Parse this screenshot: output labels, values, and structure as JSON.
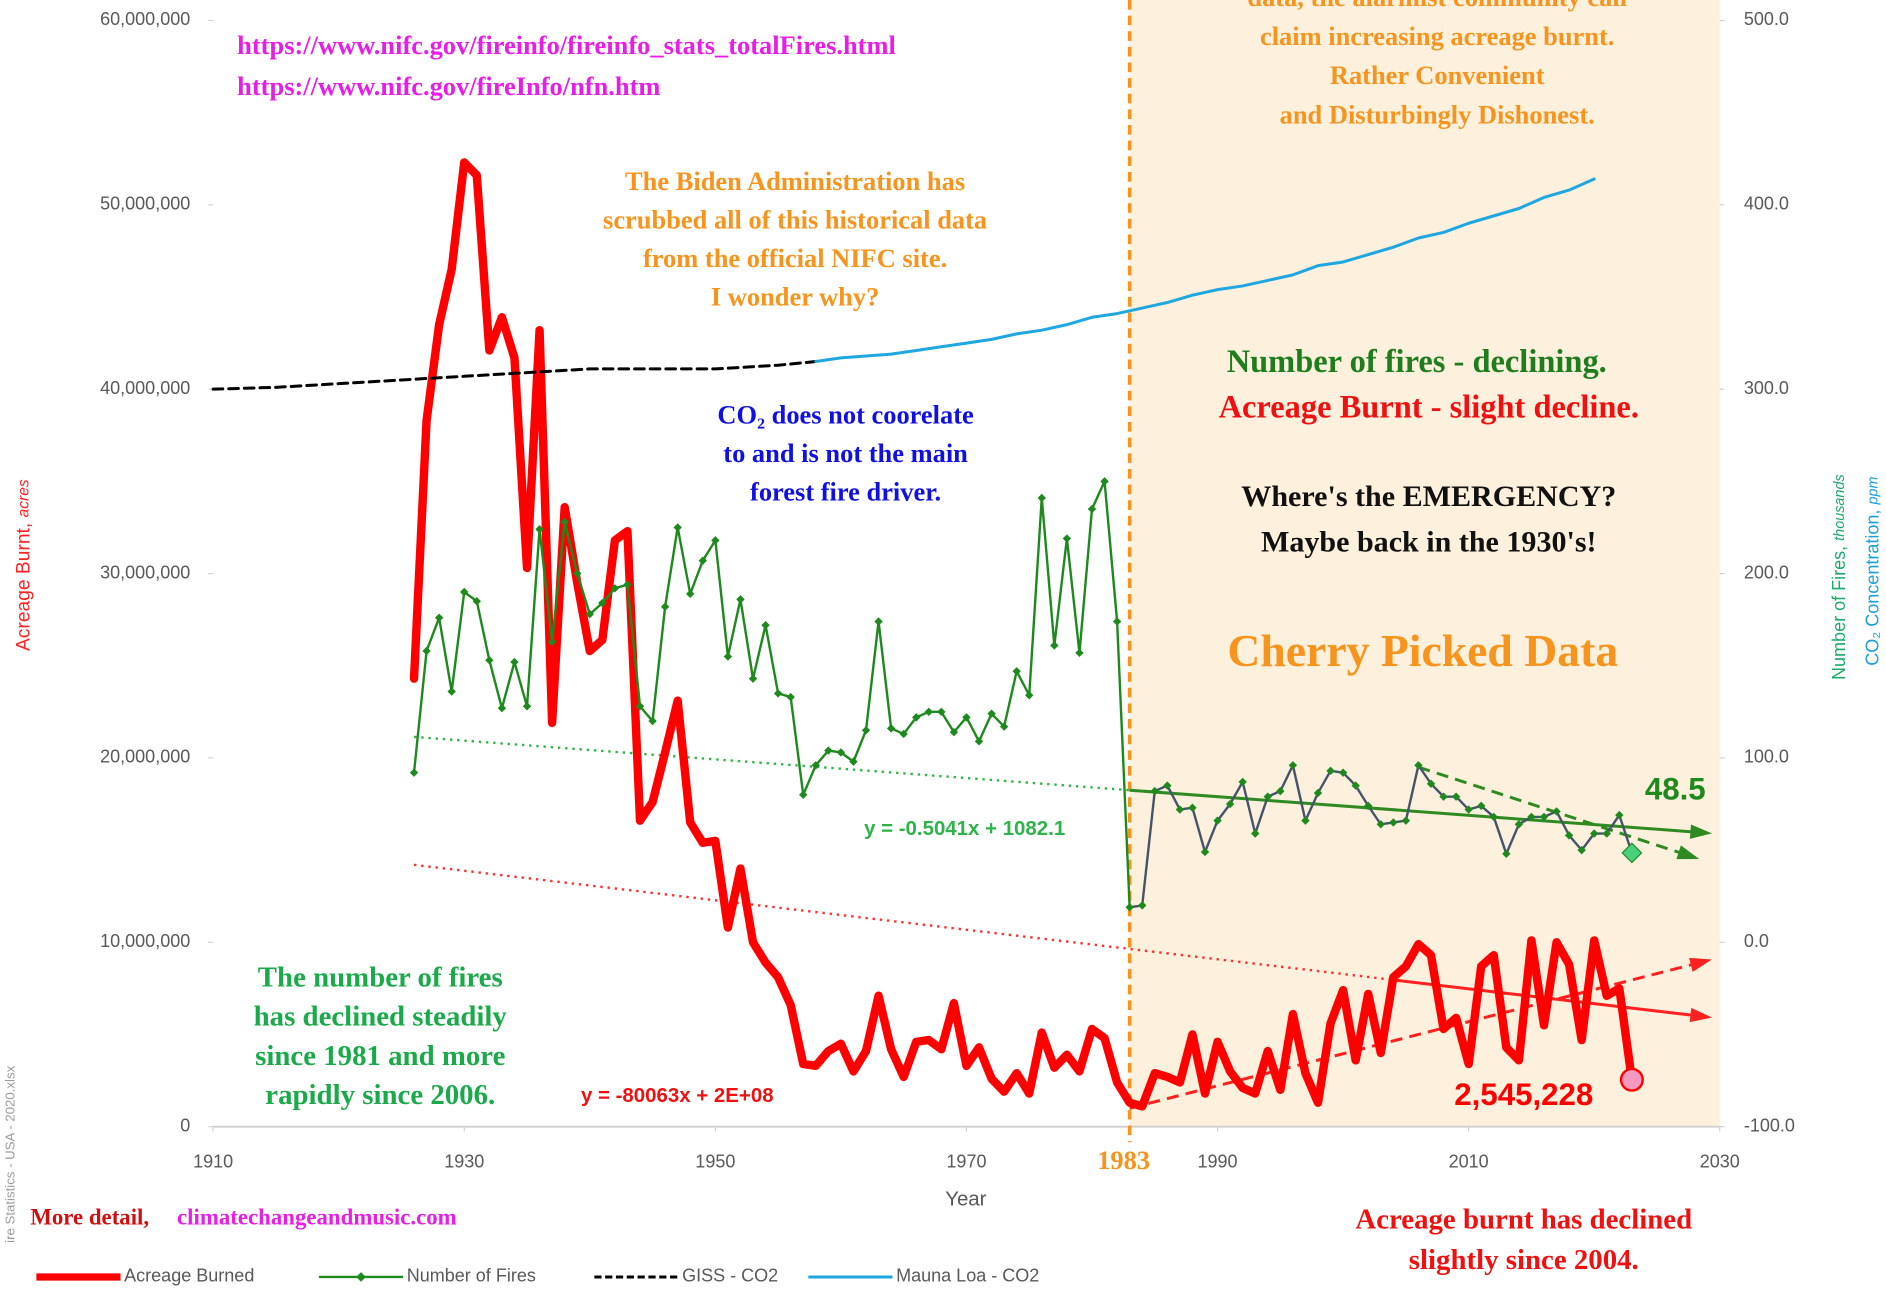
{
  "chart_data": {
    "type": "line",
    "x_label": "Year",
    "y_label": {
      "text": "Acreage Burnt,",
      "unit": "acres",
      "color": "#ff2020"
    },
    "y2_labels": [
      {
        "text": "Number of Fires,",
        "unit": "thousands",
        "color": "#1aab6b"
      },
      {
        "text": "CO₂ Concentration,",
        "unit": "ppm",
        "color": "#19a0d8"
      }
    ],
    "xlim": [
      1910,
      2030
    ],
    "xticks": [
      1910,
      1930,
      1950,
      1970,
      1990,
      2010,
      2030
    ],
    "ylim": [
      0,
      60000000
    ],
    "yticks": [
      0,
      {
        "value": 10000000,
        "label": "10,000,000"
      },
      {
        "value": 20000000,
        "label": "20,000,000"
      },
      {
        "value": 30000000,
        "label": "30,000,000"
      },
      {
        "value": 40000000,
        "label": "40,000,000"
      },
      {
        "value": 50000000,
        "label": "50,000,000"
      },
      {
        "value": 60000000,
        "label": "60,000,000"
      }
    ],
    "y2lim": [
      -100,
      500
    ],
    "y2ticks": [
      {
        "value": -100,
        "label": "-100.0"
      },
      {
        "value": 0,
        "label": "0.0"
      },
      {
        "value": 100,
        "label": "100.0"
      },
      {
        "value": 200,
        "label": "200.0"
      },
      {
        "value": 300,
        "label": "300.0"
      },
      {
        "value": 400,
        "label": "400.0"
      },
      {
        "value": 500,
        "label": "500.0"
      }
    ],
    "grid": false,
    "legend": "bottom-left",
    "cutoff": 1983,
    "cutoff_color": "#f7941d",
    "shade_color": "#fdf0dc",
    "series": [
      {
        "name": "Acreage Burned",
        "color": "#ff0000",
        "axis": "y",
        "width": 7,
        "last_marker_color": "#f49ac1",
        "x": [
          1926,
          1927,
          1928,
          1929,
          1930,
          1931,
          1932,
          1933,
          1934,
          1935,
          1936,
          1937,
          1938,
          1939,
          1940,
          1941,
          1942,
          1943,
          1944,
          1945,
          1946,
          1947,
          1948,
          1949,
          1950,
          1951,
          1952,
          1953,
          1954,
          1955,
          1956,
          1957,
          1958,
          1959,
          1960,
          1961,
          1962,
          1963,
          1964,
          1965,
          1966,
          1967,
          1968,
          1969,
          1970,
          1971,
          1972,
          1973,
          1974,
          1975,
          1976,
          1977,
          1978,
          1979,
          1980,
          1981,
          1982,
          1983,
          1984,
          1985,
          1986,
          1987,
          1988,
          1989,
          1990,
          1991,
          1992,
          1993,
          1994,
          1995,
          1996,
          1997,
          1998,
          1999,
          2000,
          2001,
          2002,
          2003,
          2004,
          2005,
          2006,
          2007,
          2008,
          2009,
          2010,
          2011,
          2012,
          2013,
          2014,
          2015,
          2016,
          2017,
          2018,
          2019,
          2020,
          2021,
          2022,
          2023
        ],
        "values": [
          24300000,
          38300000,
          43500000,
          46500000,
          52300000,
          51600000,
          42100000,
          43900000,
          41700000,
          30300000,
          43200000,
          21900000,
          33600000,
          29500000,
          25800000,
          26400000,
          31800000,
          32300000,
          16600000,
          17600000,
          20300000,
          23100000,
          16500000,
          15400000,
          15500000,
          10800000,
          14000000,
          10000000,
          8900000,
          8100000,
          6600000,
          3400000,
          3300000,
          4100000,
          4500000,
          3000000,
          4100000,
          7100000,
          4200000,
          2700000,
          4600000,
          4700000,
          4200000,
          6700000,
          3300000,
          4300000,
          2600000,
          1900000,
          2900000,
          1800000,
          5100000,
          3200000,
          3900000,
          3000000,
          5300000,
          4800000,
          2400000,
          1300000,
          1100000,
          2900000,
          2700000,
          2400000,
          5000000,
          1800000,
          4600000,
          3000000,
          2100000,
          1800000,
          4100000,
          2000000,
          6100000,
          2900000,
          1300000,
          5600000,
          7400000,
          3600000,
          7200000,
          4000000,
          8100000,
          8700000,
          9900000,
          9300000,
          5300000,
          5900000,
          3400000,
          8700000,
          9300000,
          4300000,
          3600000,
          10100000,
          5500000,
          10000000,
          8800000,
          4700000,
          10100000,
          7100000,
          7500000,
          2545228
        ],
        "value_labels": [
          null,
          null,
          null,
          null,
          null,
          null,
          null,
          null,
          null,
          null,
          null,
          null,
          null,
          null,
          null,
          null,
          null,
          null,
          null,
          null,
          null,
          null,
          null,
          null,
          null,
          null,
          null,
          null,
          null,
          null,
          null,
          null,
          null,
          null,
          null,
          null,
          null,
          null,
          null,
          null,
          null,
          null,
          null,
          null,
          null,
          null,
          null,
          null,
          null,
          null,
          null,
          null,
          null,
          null,
          null,
          null,
          null,
          null,
          null,
          null,
          null,
          null,
          null,
          null,
          null,
          null,
          null,
          null,
          null,
          null,
          null,
          null,
          null,
          null,
          null,
          null,
          null,
          null,
          null,
          null,
          null,
          null,
          null,
          null,
          null,
          null,
          null,
          null,
          null,
          null,
          null,
          null,
          null,
          null,
          null,
          null,
          null,
          "2,545,228"
        ]
      },
      {
        "name": "Number of Fires",
        "color": "#1e8a1e",
        "axis": "y2",
        "width": 2,
        "color_after_cutoff": "#44546a",
        "last_marker_color": "#48d17c",
        "x": [
          1926,
          1927,
          1928,
          1929,
          1930,
          1931,
          1932,
          1933,
          1934,
          1935,
          1936,
          1937,
          1938,
          1939,
          1940,
          1941,
          1942,
          1943,
          1944,
          1945,
          1946,
          1947,
          1948,
          1949,
          1950,
          1951,
          1952,
          1953,
          1954,
          1955,
          1956,
          1957,
          1958,
          1959,
          1960,
          1961,
          1962,
          1963,
          1964,
          1965,
          1966,
          1967,
          1968,
          1969,
          1970,
          1971,
          1972,
          1973,
          1974,
          1975,
          1976,
          1977,
          1978,
          1979,
          1980,
          1981,
          1982,
          1983,
          1984,
          1985,
          1986,
          1987,
          1988,
          1989,
          1990,
          1991,
          1992,
          1993,
          1994,
          1995,
          1996,
          1997,
          1998,
          1999,
          2000,
          2001,
          2002,
          2003,
          2004,
          2005,
          2006,
          2007,
          2008,
          2009,
          2010,
          2011,
          2012,
          2013,
          2014,
          2015,
          2016,
          2017,
          2018,
          2019,
          2020,
          2021,
          2022,
          2023
        ],
        "values": [
          92,
          158,
          176,
          136,
          190,
          185,
          153,
          127,
          152,
          128,
          224,
          163,
          228,
          200,
          178,
          184,
          192,
          194,
          128,
          120,
          182,
          225,
          189,
          207,
          218,
          155,
          186,
          143,
          172,
          135,
          133,
          80,
          96,
          104,
          103,
          98,
          115,
          174,
          116,
          113,
          122,
          125,
          125,
          114,
          122,
          109,
          124,
          117,
          147,
          134,
          241,
          161,
          219,
          157,
          235,
          250,
          174,
          19,
          20,
          82,
          85,
          72,
          73,
          49,
          66,
          75,
          87,
          59,
          79,
          82,
          96,
          66,
          81,
          93,
          92,
          85,
          74,
          64,
          65,
          66,
          96,
          86,
          79,
          79,
          72,
          74,
          68,
          48,
          64,
          68,
          68,
          71,
          58,
          50,
          59,
          59,
          69,
          48.5
        ]
      },
      {
        "name": "GISS - CO2",
        "color": "#000000",
        "axis": "y2",
        "width": 2.5,
        "dash": "8,5",
        "x": [
          1910,
          1915,
          1920,
          1925,
          1930,
          1935,
          1940,
          1945,
          1950,
          1955,
          1958
        ],
        "values": [
          300,
          301,
          303,
          305,
          307,
          309,
          311,
          311,
          311,
          313,
          315
        ]
      },
      {
        "name": "Mauna Loa - CO2",
        "color": "#1ea7e1",
        "axis": "y2",
        "width": 2.5,
        "x": [
          1958,
          1960,
          1962,
          1964,
          1966,
          1968,
          1970,
          1972,
          1974,
          1976,
          1978,
          1980,
          1982,
          1984,
          1986,
          1988,
          1990,
          1992,
          1994,
          1996,
          1998,
          2000,
          2002,
          2004,
          2006,
          2008,
          2010,
          2012,
          2014,
          2016,
          2018,
          2020
        ],
        "values": [
          315,
          317,
          318,
          319,
          321,
          323,
          325,
          327,
          330,
          332,
          335,
          339,
          341,
          344,
          347,
          351,
          354,
          356,
          359,
          362,
          367,
          369,
          373,
          377,
          382,
          385,
          390,
          394,
          398,
          404,
          408,
          414
        ]
      }
    ],
    "trendlines": [
      {
        "axis": "y2",
        "color": "#33b34a",
        "style": "dotted",
        "arrow": false,
        "x": [
          1926,
          1983
        ],
        "values": [
          111.4,
          82.5
        ]
      },
      {
        "axis": "y2",
        "color": "#2e8b22",
        "style": "solid",
        "arrow": true,
        "x": [
          1983,
          2029
        ],
        "values": [
          82.5,
          59.3
        ]
      },
      {
        "axis": "y2",
        "color": "#2e8b22",
        "style": "dashed",
        "arrow": true,
        "x": [
          2006,
          2028
        ],
        "values": [
          95,
          46
        ]
      },
      {
        "axis": "y",
        "color": "#ff3030",
        "style": "dotted",
        "arrow": false,
        "x": [
          1926,
          2004
        ],
        "values": [
          14200000,
          7960000
        ]
      },
      {
        "axis": "y",
        "color": "#ff2020",
        "style": "solid",
        "arrow": true,
        "x": [
          2004,
          2029
        ],
        "values": [
          7960000,
          5950000
        ]
      },
      {
        "axis": "y",
        "color": "#ff2020",
        "style": "dashed",
        "arrow": true,
        "x": [
          1983,
          2029
        ],
        "values": [
          1000000,
          9000000
        ]
      }
    ],
    "annotations": [
      {
        "lines": [
          "https://www.nifc.gov/fireinfo/fireinfo_stats_totalFires.html",
          "https://www.nifc.gov/fireInfo/nfn.htm"
        ],
        "color": "#e81ee8",
        "size": 22,
        "font": "serif"
      },
      {
        "lines": [
          "The Biden Administration has",
          "scrubbed all of this historical data",
          "from the official NIFC site.",
          "I wonder why?"
        ],
        "color": "#f7941d",
        "size": 22,
        "font": "serif"
      },
      {
        "lines": [
          "data, the alarmist community can",
          "claim increasing acreage burnt.",
          "Rather Convenient",
          "and Disturbingly Dishonest."
        ],
        "color": "#f7941d",
        "size": 22,
        "font": "serif"
      },
      {
        "lines": [
          "CO₂ does not coorelate",
          "to and is not the main",
          "forest fire driver."
        ],
        "color": "#1010e0",
        "size": 22,
        "font": "serif"
      },
      {
        "lines": [
          "Number of fires - declining."
        ],
        "color": "#1e7e1e",
        "size": 27,
        "font": "serif"
      },
      {
        "lines": [
          "Acreage Burnt - slight decline."
        ],
        "color": "#f01010",
        "size": 27,
        "font": "serif"
      },
      {
        "lines": [
          "Where's the EMERGENCY?",
          "Maybe back in the 1930's!"
        ],
        "color": "#111111",
        "size": 25,
        "font": "serif"
      },
      {
        "lines": [
          "Cherry Picked Data"
        ],
        "color": "#f7941d",
        "size": 38,
        "font": "serif"
      },
      {
        "lines": [
          "The number of fires",
          "has declined steadily",
          "since 1981 and more",
          "rapidly since 2006."
        ],
        "color": "#1aaa4a",
        "size": 24,
        "font": "serif"
      },
      {
        "lines": [
          "y = -80063x + 2E+08"
        ],
        "color": "#f01010",
        "size": 17,
        "font": "sans"
      },
      {
        "lines": [
          "y = -0.5041x + 1082.1"
        ],
        "color": "#2db34a",
        "size": 17,
        "font": "sans"
      },
      {
        "lines": [
          "Acreage burnt has declined",
          "slightly since 2004."
        ],
        "color": "#f01010",
        "size": 24,
        "font": "serif"
      },
      {
        "lines": [
          "More detail,"
        ],
        "color": "#d01010",
        "size": 19,
        "font": "serif"
      },
      {
        "lines": [
          "climatechangeandmusic.com"
        ],
        "color": "#e81ee8",
        "size": 19,
        "font": "serif"
      }
    ],
    "file_note": "ire Statistics - USA - 2020.xlsx"
  }
}
